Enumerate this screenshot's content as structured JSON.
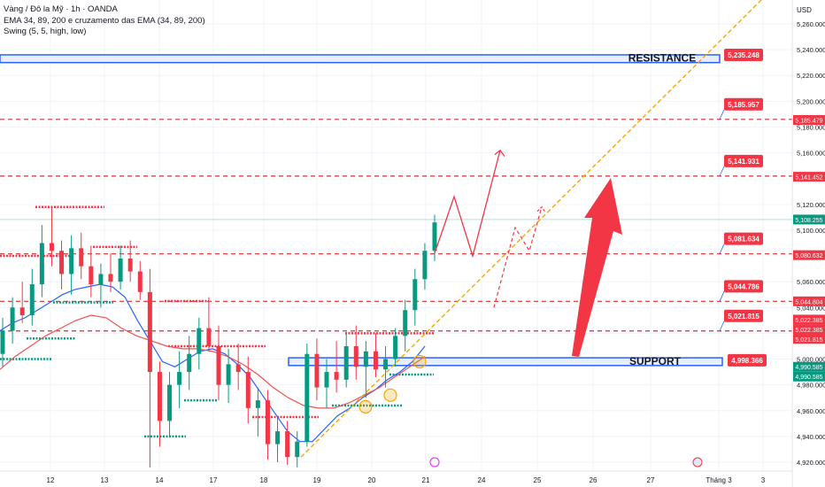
{
  "legend": {
    "line1": "Vàng / Đô la Mỹ · 1h · OANDA",
    "line2": "EMA 34, 89, 200 e cruzamento das EMA (34, 89, 200)",
    "line3": "Swing (5, 5, high, low)"
  },
  "axis": {
    "currency": "USD",
    "x_ticks": [
      "12",
      "13",
      "14",
      "17",
      "18",
      "19",
      "20",
      "21",
      "24",
      "25",
      "26",
      "27",
      "Tháng 3",
      "3"
    ],
    "y_ticks": [
      "5,260.000",
      "5,240.000",
      "5,220.000",
      "5,200.000",
      "5,180.000",
      "5,160.000",
      "5,140.000",
      "5,120.000",
      "5,100.000",
      "5,080.000",
      "5,060.000",
      "5,040.000",
      "5,020.000",
      "5,000.000",
      "4,980.000",
      "4,960.000",
      "4,940.000",
      "4,920.000"
    ]
  },
  "chart_data": {
    "type": "candlestick",
    "symbol": "XAUUSD",
    "timeframe": "1h",
    "ylim": [
      4915,
      5272
    ],
    "zones": {
      "resistance": {
        "label": "RESISTANCE",
        "low": 5230,
        "high": 5236
      },
      "support": {
        "label": "SUPPORT",
        "low": 4995,
        "high": 5001
      }
    },
    "levels": [
      {
        "value": 5185.957,
        "label": "5,185.957",
        "style": "dashed"
      },
      {
        "value": 5141.931,
        "label": "5,141.931",
        "style": "dashed"
      },
      {
        "value": 5081.634,
        "label": "5,081.634",
        "style": "dashed"
      },
      {
        "value": 5044.786,
        "label": "5,044.786",
        "style": "dashed"
      },
      {
        "value": 5021.815,
        "label": "5,021.815",
        "style": "dashed"
      },
      {
        "value": 5235.248,
        "label": "5,235.248",
        "style": "zone"
      },
      {
        "value": 4998.366,
        "label": "4,998.366",
        "style": "zone"
      }
    ],
    "axis_badges": [
      {
        "value": 5185.479,
        "label": "5,185.479",
        "color": "#f23645"
      },
      {
        "value": 5141.452,
        "label": "5,141.452",
        "color": "#f23645"
      },
      {
        "value": 5108.255,
        "label": "5,108.255",
        "color": "#089981"
      },
      {
        "value": 5080.632,
        "label": "5,080.632",
        "color": "#f23645"
      },
      {
        "value": 5044.804,
        "label": "5,044.804",
        "color": "#f23645"
      },
      {
        "value": 5022.385,
        "label": "5,022.385",
        "color": "#f23645"
      },
      {
        "value": 5022.385,
        "label": "5,022.385",
        "color": "#f23645"
      },
      {
        "value": 5021.815,
        "label": "5,021.815",
        "color": "#f23645"
      },
      {
        "value": 4990.585,
        "label": "4,990.585",
        "color": "#089981"
      },
      {
        "value": 4990.585,
        "label": "4,990.585",
        "color": "#089981"
      }
    ],
    "last_price": 5108.255,
    "candles": [
      [
        5004,
        5032,
        4994,
        5022
      ],
      [
        5022,
        5048,
        5012,
        5040
      ],
      [
        5040,
        5060,
        5028,
        5034
      ],
      [
        5034,
        5070,
        5026,
        5058
      ],
      [
        5058,
        5104,
        5048,
        5090
      ],
      [
        5090,
        5118,
        5072,
        5084
      ],
      [
        5084,
        5092,
        5054,
        5066
      ],
      [
        5066,
        5096,
        5050,
        5086
      ],
      [
        5086,
        5098,
        5062,
        5072
      ],
      [
        5072,
        5088,
        5048,
        5058
      ],
      [
        5058,
        5074,
        5040,
        5066
      ],
      [
        5066,
        5082,
        5052,
        5060
      ],
      [
        5060,
        5088,
        5054,
        5078
      ],
      [
        5078,
        5092,
        5060,
        5068
      ],
      [
        5068,
        5076,
        5046,
        5052
      ],
      [
        5052,
        5070,
        4916,
        4990
      ],
      [
        4990,
        4998,
        4932,
        4952
      ],
      [
        4952,
        4990,
        4940,
        4980
      ],
      [
        4980,
        5006,
        4962,
        4990
      ],
      [
        4990,
        5018,
        4976,
        5004
      ],
      [
        5004,
        5032,
        4992,
        5024
      ],
      [
        5024,
        5048,
        5006,
        5010
      ],
      [
        5010,
        5026,
        4968,
        4980
      ],
      [
        4980,
        5008,
        4966,
        4996
      ],
      [
        4996,
        5012,
        4976,
        4990
      ],
      [
        4990,
        5002,
        4950,
        4962
      ],
      [
        4962,
        4978,
        4940,
        4968
      ],
      [
        4968,
        4976,
        4922,
        4934
      ],
      [
        4934,
        4956,
        4920,
        4944
      ],
      [
        4944,
        4952,
        4918,
        4924
      ],
      [
        4924,
        4944,
        4916,
        4936
      ],
      [
        4936,
        5012,
        4932,
        5004
      ],
      [
        5004,
        5016,
        4968,
        4978
      ],
      [
        4978,
        5000,
        4962,
        4990
      ],
      [
        4990,
        5014,
        4974,
        4984
      ],
      [
        4984,
        5020,
        4978,
        5010
      ],
      [
        5010,
        5026,
        4984,
        4994
      ],
      [
        4994,
        5014,
        4970,
        5006
      ],
      [
        5006,
        5020,
        4986,
        4992
      ],
      [
        4992,
        5010,
        4978,
        5000
      ],
      [
        5000,
        5024,
        4994,
        5018
      ],
      [
        5018,
        5046,
        5006,
        5038
      ],
      [
        5038,
        5070,
        5026,
        5062
      ],
      [
        5062,
        5090,
        5054,
        5084
      ],
      [
        5084,
        5112,
        5076,
        5106
      ]
    ],
    "ema": {
      "ema34": [
        5022,
        5028,
        5032,
        5038,
        5044,
        5050,
        5054,
        5056,
        5058,
        5056,
        5048,
        5030,
        5014,
        4998,
        4994,
        5000,
        5006,
        5008,
        5004,
        4996,
        4986,
        4972,
        4958,
        4944,
        4936,
        4936,
        4946,
        4956,
        4962,
        4970,
        4976,
        4984,
        4990,
        4998,
        5010
      ],
      "ema89": [
        4992,
        5002,
        5010,
        5018,
        5024,
        5030,
        5034,
        5032,
        5024,
        5018,
        5014,
        5010,
        5008,
        5008,
        5006,
        5002,
        4996,
        4988,
        4978,
        4970,
        4964,
        4962,
        4962,
        4966,
        4972,
        4978,
        4986,
        4994,
        5002
      ]
    },
    "forecast_path": [
      5082,
      5126,
      5080,
      5162
    ],
    "forecast_dashed": [
      5040,
      5102,
      5084,
      5118
    ],
    "trendline": [
      4924,
      5295
    ]
  }
}
